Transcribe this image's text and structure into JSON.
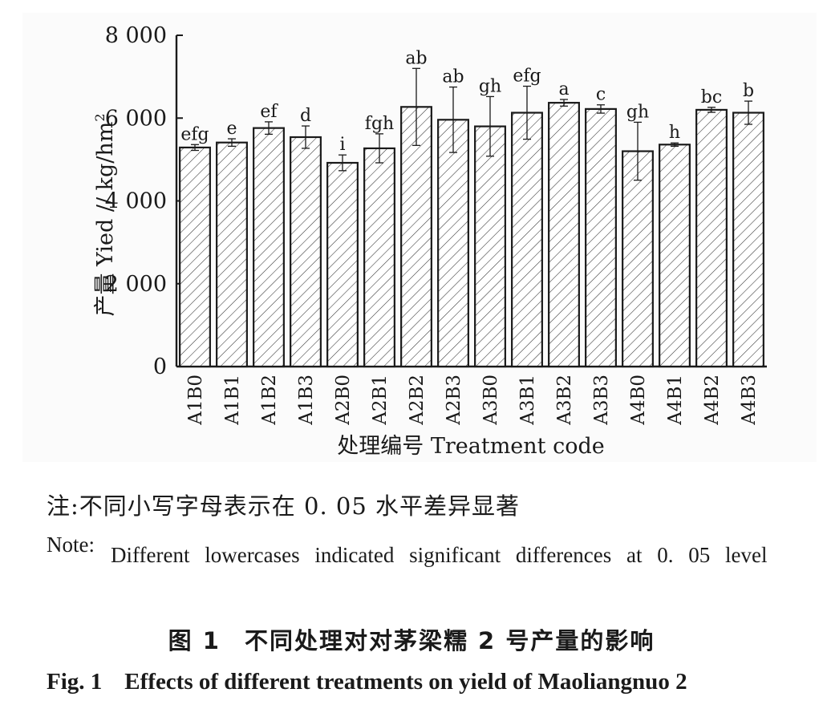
{
  "chart_data": {
    "type": "bar",
    "categories": [
      "A1B0",
      "A1B1",
      "A1B2",
      "A1B3",
      "A2B0",
      "A2B1",
      "A2B2",
      "A2B3",
      "A3B0",
      "A3B1",
      "A3B2",
      "A3B3",
      "A4B0",
      "A4B1",
      "A4B2",
      "A4B3"
    ],
    "values": [
      5290,
      5410,
      5760,
      5540,
      4920,
      5270,
      6270,
      5960,
      5800,
      6130,
      6370,
      6220,
      5200,
      5360,
      6200,
      6130
    ],
    "errors": [
      70,
      90,
      150,
      270,
      190,
      350,
      930,
      790,
      720,
      640,
      80,
      100,
      700,
      40,
      60,
      280
    ],
    "letters": [
      "efg",
      "e",
      "ef",
      "d",
      "i",
      "fgh",
      "ab",
      "ab",
      "gh",
      "efg",
      "a",
      "c",
      "gh",
      "h",
      "bc",
      "b"
    ],
    "ylim": [
      0,
      8000
    ],
    "yticks": [
      0,
      2000,
      4000,
      6000,
      8000
    ],
    "ytick_labels": [
      "0",
      "2 000",
      "4 000",
      "6 000",
      "8 000"
    ],
    "ylabel": "产量 Yied // kg/hm",
    "ylabel_sup": "2",
    "xlabel": "处理编号 Treatment code",
    "bar_pattern": "diagonal-hatch",
    "grid": false
  },
  "note_cn": "注:不同小写字母表示在 0. 05 水平差异显著",
  "note_en_label": "Note:",
  "note_en_text": "Different lowercases indicated significant differences at 0. 05 level",
  "figure_cn_num": "图 1",
  "figure_cn_title": "不同处理对对茅梁糯 2 号产量的影响",
  "figure_en_num": "Fig. 1",
  "figure_en_title": "Effects of different treatments on yield of Maoliangnuo 2"
}
